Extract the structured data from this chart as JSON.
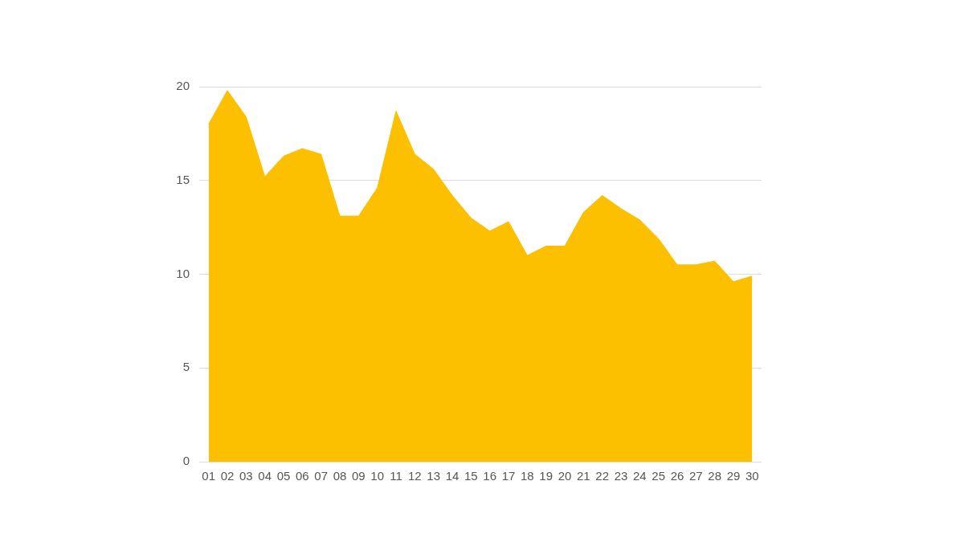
{
  "chart_data": {
    "type": "area",
    "categories": [
      "01",
      "02",
      "03",
      "04",
      "05",
      "06",
      "07",
      "08",
      "09",
      "10",
      "11",
      "12",
      "13",
      "14",
      "15",
      "16",
      "17",
      "18",
      "19",
      "20",
      "21",
      "22",
      "23",
      "24",
      "25",
      "26",
      "27",
      "28",
      "29",
      "30"
    ],
    "series": [
      {
        "color": "#fcc000",
        "values": [
          18.0,
          19.8,
          18.4,
          15.2,
          16.3,
          16.7,
          16.4,
          13.1,
          13.1,
          14.6,
          18.7,
          16.4,
          15.6,
          14.2,
          13.0,
          12.3,
          12.8,
          11.0,
          11.5,
          11.5,
          13.3,
          14.2,
          13.5,
          12.9,
          11.9,
          10.5,
          10.5,
          10.7,
          9.6,
          9.9
        ]
      }
    ],
    "ylim": [
      0,
      20
    ],
    "yticks": [
      0,
      5,
      10,
      15,
      20
    ],
    "grid": "y"
  }
}
